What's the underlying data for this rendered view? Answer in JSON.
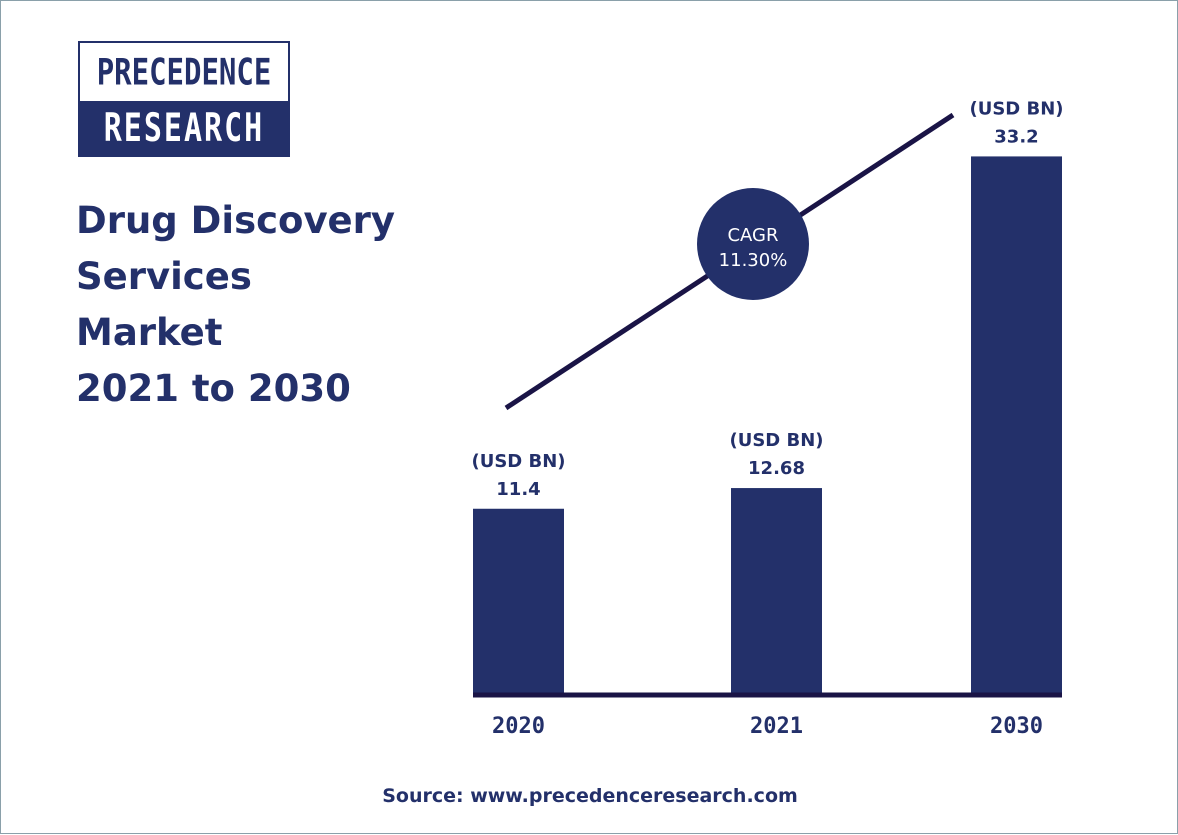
{
  "logo": {
    "line1": "PRECEDENCE",
    "line2": "RESEARCH"
  },
  "title_lines": [
    "Drug Discovery",
    "Services",
    "Market",
    "2021 to 2030"
  ],
  "source": "Source: www.precedenceresearch.com",
  "colors": {
    "bar": "#23306a",
    "trend": "#1a1446",
    "text": "#23306a",
    "cagr_bg": "#23306a"
  },
  "cagr": {
    "label": "CAGR",
    "value": "11.30%"
  },
  "chart_data": {
    "type": "bar",
    "title": "Drug Discovery Services Market 2021 to 2030",
    "categories": [
      "2020",
      "2021",
      "2030"
    ],
    "values": [
      11.4,
      12.68,
      33.2
    ],
    "value_labels": [
      "11.4",
      "12.68",
      "33.2"
    ],
    "unit_label": "(USD BN)",
    "ylim": [
      0,
      37
    ],
    "grid": false,
    "legend": "none"
  }
}
